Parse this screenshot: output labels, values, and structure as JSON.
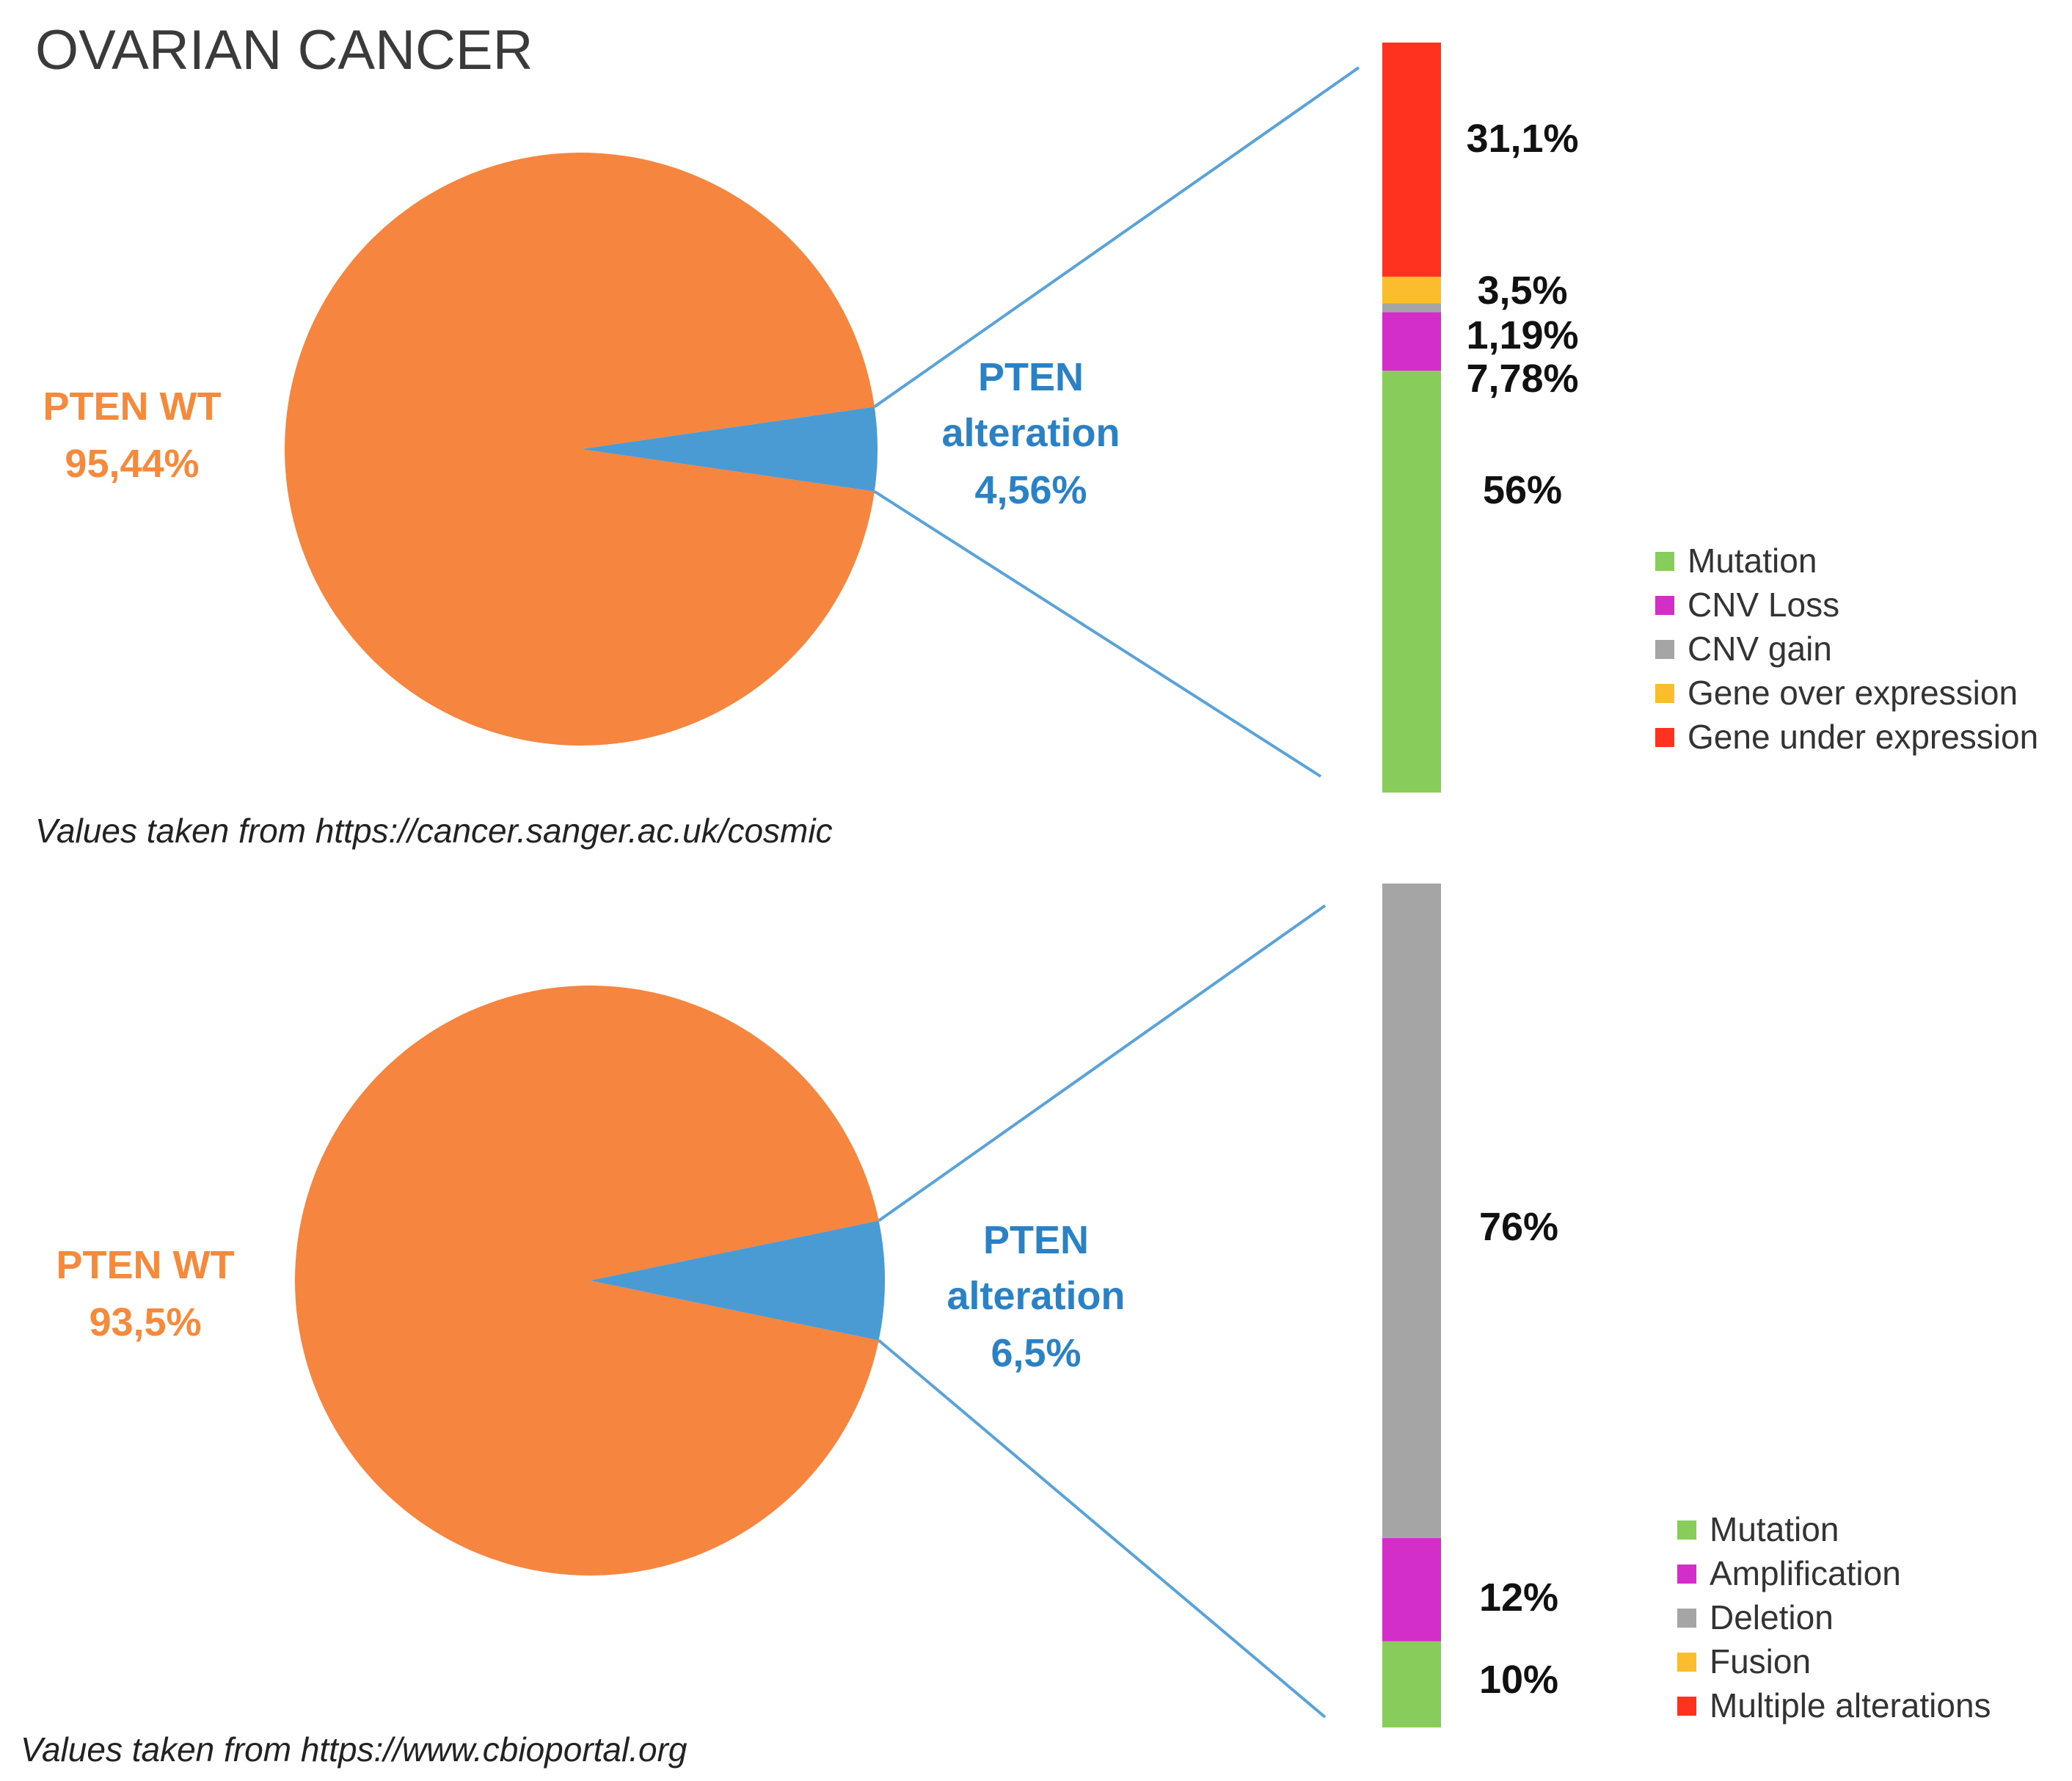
{
  "title": "OVARIAN CANCER",
  "chart_data": [
    {
      "type": "pie",
      "source": "Values taken from https://cancer.sanger.ac.uk/cosmic",
      "pie": {
        "slices": [
          {
            "name": "PTEN WT",
            "line1": "PTEN WT",
            "line2": "95,44%",
            "value": 95.44,
            "color": "#f5853f"
          },
          {
            "name": "PTEN alteration",
            "line1": "PTEN",
            "line2": "alteration",
            "line3": "4,56%",
            "value": 4.56,
            "color": "#4a9ad4"
          }
        ]
      },
      "stacked_bar": {
        "type": "bar",
        "stacked": true,
        "segments": [
          {
            "category": "Mutation",
            "value": 56,
            "label": "56%",
            "color": "#88cc5c"
          },
          {
            "category": "CNV Loss",
            "value": 7.78,
            "label": "7,78%",
            "color": "#d42ec8"
          },
          {
            "category": "CNV gain",
            "value": 1.19,
            "label": "1,19%",
            "color": "#a5a5a5"
          },
          {
            "category": "Gene over expression",
            "value": 3.5,
            "label": "3,5%",
            "color": "#fbbc2e"
          },
          {
            "category": "Gene under expression",
            "value": 31.1,
            "label": "31,1%",
            "color": "#ff3220"
          }
        ]
      },
      "legend": [
        {
          "label": "Mutation",
          "color": "#88cc5c"
        },
        {
          "label": "CNV Loss",
          "color": "#d42ec8"
        },
        {
          "label": "CNV gain",
          "color": "#a5a5a5"
        },
        {
          "label": "Gene over expression",
          "color": "#fbbc2e"
        },
        {
          "label": "Gene under expression",
          "color": "#ff3220"
        }
      ]
    },
    {
      "type": "pie",
      "source": "Values taken from https://www.cbioportal.org",
      "pie": {
        "slices": [
          {
            "name": "PTEN WT",
            "line1": "PTEN WT",
            "line2": "93,5%",
            "value": 93.5,
            "color": "#f5853f"
          },
          {
            "name": "PTEN alteration",
            "line1": "PTEN",
            "line2": "alteration",
            "line3": "6,5%",
            "value": 6.5,
            "color": "#4a9ad4"
          }
        ]
      },
      "stacked_bar": {
        "type": "bar",
        "stacked": true,
        "segments": [
          {
            "category": "Mutation",
            "value": 10,
            "label": "10%",
            "color": "#88cc5c"
          },
          {
            "category": "Amplification",
            "value": 12,
            "label": "12%",
            "color": "#d42ec8"
          },
          {
            "category": "Deletion",
            "value": 76,
            "label": "76%",
            "color": "#a5a5a5"
          }
        ]
      },
      "legend": [
        {
          "label": "Mutation",
          "color": "#88cc5c"
        },
        {
          "label": "Amplification",
          "color": "#d42ec8"
        },
        {
          "label": "Deletion",
          "color": "#a5a5a5"
        },
        {
          "label": "Fusion",
          "color": "#fbbc2e"
        },
        {
          "label": "Multiple alterations",
          "color": "#ff3220"
        }
      ]
    }
  ]
}
